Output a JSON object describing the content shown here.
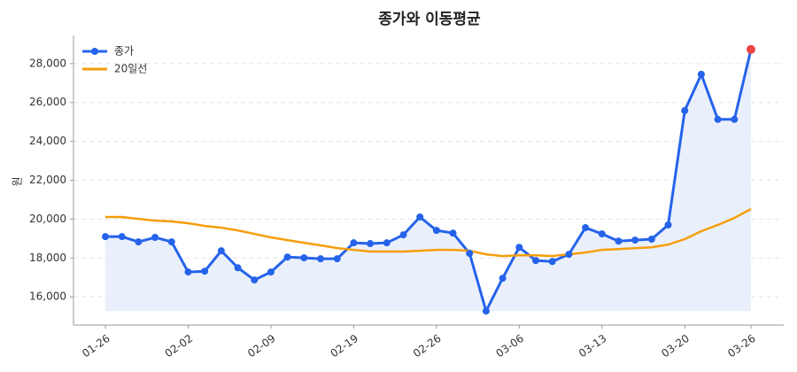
{
  "chart_data": {
    "type": "line",
    "title": "종가와 이동평균",
    "y_label": "원",
    "categories": [
      "01-26",
      null,
      null,
      null,
      null,
      "02-02",
      null,
      null,
      null,
      null,
      "02-09",
      null,
      null,
      null,
      null,
      "02-19",
      null,
      null,
      null,
      null,
      "02-26",
      null,
      null,
      null,
      null,
      "03-06",
      null,
      null,
      null,
      null,
      "03-13",
      null,
      null,
      null,
      null,
      "03-20",
      null,
      null,
      null,
      "03-26"
    ],
    "series": [
      {
        "name": "종가",
        "color": "#2563eb",
        "fill": "#e8eefb",
        "markers": true,
        "last_point_color": "#ef4444",
        "values": [
          19100,
          19100,
          18830,
          19060,
          18830,
          17280,
          17320,
          18370,
          17500,
          16870,
          17280,
          18050,
          18010,
          17960,
          17960,
          18780,
          18740,
          18780,
          19190,
          20110,
          19420,
          19280,
          18240,
          15270,
          16960,
          18550,
          17870,
          17820,
          18190,
          19560,
          19240,
          18870,
          18920,
          18970,
          19700,
          25580,
          27450,
          25130,
          25130,
          28730
        ]
      },
      {
        "name": "20일선",
        "color": "#f59e0b",
        "markers": false,
        "values": [
          20110,
          20110,
          20010,
          19920,
          19880,
          19790,
          19650,
          19560,
          19420,
          19240,
          19060,
          18920,
          18780,
          18650,
          18510,
          18420,
          18330,
          18330,
          18330,
          18370,
          18420,
          18420,
          18370,
          18190,
          18100,
          18140,
          18140,
          18100,
          18190,
          18280,
          18420,
          18460,
          18510,
          18550,
          18690,
          18970,
          19380,
          19700,
          20060,
          20520
        ]
      }
    ],
    "ylim": [
      14550,
      29450
    ],
    "yticks": [
      {
        "value": 16000,
        "label": "16,000"
      },
      {
        "value": 18000,
        "label": "18,000"
      },
      {
        "value": 20000,
        "label": "20,000"
      },
      {
        "value": 22000,
        "label": "22,000"
      },
      {
        "value": 24000,
        "label": "24,000"
      },
      {
        "value": 26000,
        "label": "26,000"
      },
      {
        "value": 28000,
        "label": "28,000"
      }
    ],
    "grid": true,
    "legend": "upper left"
  }
}
